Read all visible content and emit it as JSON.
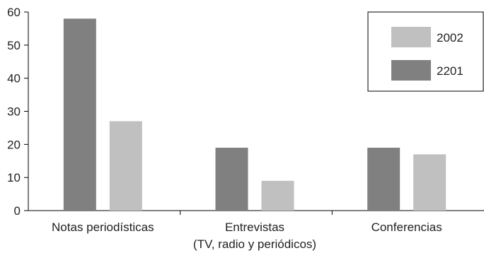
{
  "chart_data": {
    "type": "bar",
    "categories": [
      [
        "Notas periodísticas"
      ],
      [
        "Entrevistas",
        "(TV, radio y periódicos)"
      ],
      [
        "Conferencias"
      ]
    ],
    "series": [
      {
        "name": "2201",
        "color": "#808080",
        "values": [
          58,
          19,
          19
        ]
      },
      {
        "name": "2002",
        "color": "#c0c0c0",
        "values": [
          27,
          9,
          17
        ]
      }
    ],
    "legend_order": [
      "2002",
      "2201"
    ],
    "legend_position": "top-right",
    "ylim": [
      0,
      60
    ],
    "yticks": [
      0,
      10,
      20,
      30,
      40,
      50,
      60
    ],
    "grid": false
  }
}
